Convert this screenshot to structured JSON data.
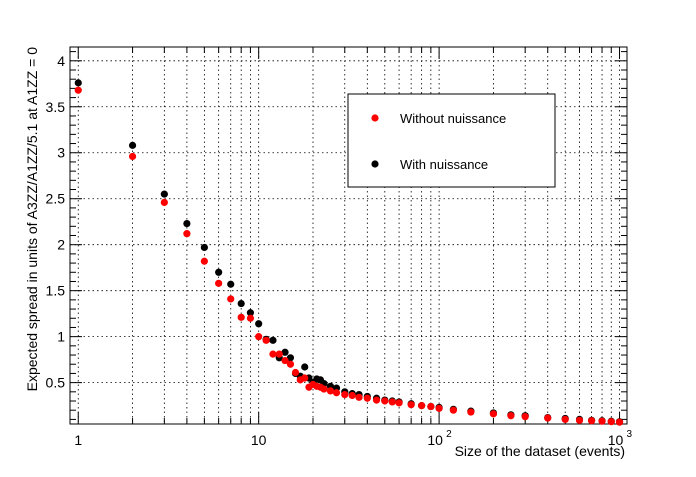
{
  "chart_data": {
    "type": "scatter",
    "title": "",
    "xlabel": "Size of the dataset (events)",
    "ylabel": "Expected spread in units of A3ZZ/A1ZZ/5.1 at A1ZZ = 0",
    "x_scale": "log",
    "xlim": [
      0.9,
      1100
    ],
    "ylim": [
      0.05,
      4.15
    ],
    "grid": true,
    "legend_position": "top-right",
    "x_ticks": [
      {
        "value": 1,
        "label": "1"
      },
      {
        "value": 10,
        "label": "10"
      },
      {
        "value": 100,
        "label": "10",
        "exp": "2"
      },
      {
        "value": 1000,
        "label": "10",
        "exp": "3"
      }
    ],
    "y_ticks": [
      {
        "value": 0.5,
        "label": "0.5"
      },
      {
        "value": 1,
        "label": "1"
      },
      {
        "value": 1.5,
        "label": "1.5"
      },
      {
        "value": 2,
        "label": "2"
      },
      {
        "value": 2.5,
        "label": "2.5"
      },
      {
        "value": 3,
        "label": "3"
      },
      {
        "value": 3.5,
        "label": "3.5"
      },
      {
        "value": 4,
        "label": "4"
      }
    ],
    "series": [
      {
        "name": "With nuissance",
        "color": "#000000",
        "points": [
          [
            1,
            3.76
          ],
          [
            2,
            3.08
          ],
          [
            3,
            2.55
          ],
          [
            4,
            2.23
          ],
          [
            5,
            1.97
          ],
          [
            6,
            1.7
          ],
          [
            7,
            1.57
          ],
          [
            8,
            1.36
          ],
          [
            9,
            1.26
          ],
          [
            10,
            1.14
          ],
          [
            11,
            0.97
          ],
          [
            12,
            0.96
          ],
          [
            13,
            0.77
          ],
          [
            14,
            0.83
          ],
          [
            15,
            0.77
          ],
          [
            16,
            0.6
          ],
          [
            17,
            0.57
          ],
          [
            18,
            0.67
          ],
          [
            19,
            0.55
          ],
          [
            20,
            0.5
          ],
          [
            21,
            0.54
          ],
          [
            22,
            0.53
          ],
          [
            23,
            0.49
          ],
          [
            25,
            0.46
          ],
          [
            27,
            0.44
          ],
          [
            30,
            0.4
          ],
          [
            33,
            0.38
          ],
          [
            36,
            0.37
          ],
          [
            40,
            0.35
          ],
          [
            45,
            0.33
          ],
          [
            50,
            0.31
          ],
          [
            55,
            0.3
          ],
          [
            60,
            0.29
          ],
          [
            70,
            0.27
          ],
          [
            80,
            0.25
          ],
          [
            90,
            0.24
          ],
          [
            100,
            0.23
          ],
          [
            120,
            0.21
          ],
          [
            150,
            0.19
          ],
          [
            200,
            0.17
          ],
          [
            250,
            0.15
          ],
          [
            300,
            0.14
          ],
          [
            400,
            0.12
          ],
          [
            500,
            0.11
          ],
          [
            600,
            0.1
          ],
          [
            700,
            0.09
          ],
          [
            800,
            0.085
          ],
          [
            900,
            0.08
          ],
          [
            1000,
            0.075
          ]
        ]
      },
      {
        "name": "Without nuissance",
        "color": "#ff0000",
        "points": [
          [
            1,
            3.68
          ],
          [
            2,
            2.96
          ],
          [
            3,
            2.46
          ],
          [
            4,
            2.12
          ],
          [
            5,
            1.82
          ],
          [
            6,
            1.58
          ],
          [
            7,
            1.41
          ],
          [
            8,
            1.21
          ],
          [
            9,
            1.2
          ],
          [
            10,
            1.0
          ],
          [
            11,
            0.96
          ],
          [
            12,
            0.81
          ],
          [
            13,
            0.81
          ],
          [
            14,
            0.74
          ],
          [
            15,
            0.7
          ],
          [
            16,
            0.61
          ],
          [
            17,
            0.53
          ],
          [
            18,
            0.55
          ],
          [
            19,
            0.45
          ],
          [
            20,
            0.48
          ],
          [
            21,
            0.46
          ],
          [
            22,
            0.45
          ],
          [
            23,
            0.43
          ],
          [
            25,
            0.41
          ],
          [
            27,
            0.39
          ],
          [
            30,
            0.37
          ],
          [
            33,
            0.36
          ],
          [
            36,
            0.34
          ],
          [
            40,
            0.33
          ],
          [
            45,
            0.31
          ],
          [
            50,
            0.3
          ],
          [
            55,
            0.29
          ],
          [
            60,
            0.28
          ],
          [
            70,
            0.26
          ],
          [
            80,
            0.25
          ],
          [
            90,
            0.24
          ],
          [
            100,
            0.22
          ],
          [
            120,
            0.2
          ],
          [
            150,
            0.18
          ],
          [
            200,
            0.16
          ],
          [
            250,
            0.14
          ],
          [
            300,
            0.13
          ],
          [
            400,
            0.115
          ],
          [
            500,
            0.1
          ],
          [
            600,
            0.09
          ],
          [
            700,
            0.085
          ],
          [
            800,
            0.08
          ],
          [
            900,
            0.075
          ],
          [
            1000,
            0.07
          ]
        ]
      }
    ],
    "legend": [
      {
        "label": "Without nuissance",
        "color": "#ff0000"
      },
      {
        "label": "With nuissance",
        "color": "#000000"
      }
    ]
  }
}
